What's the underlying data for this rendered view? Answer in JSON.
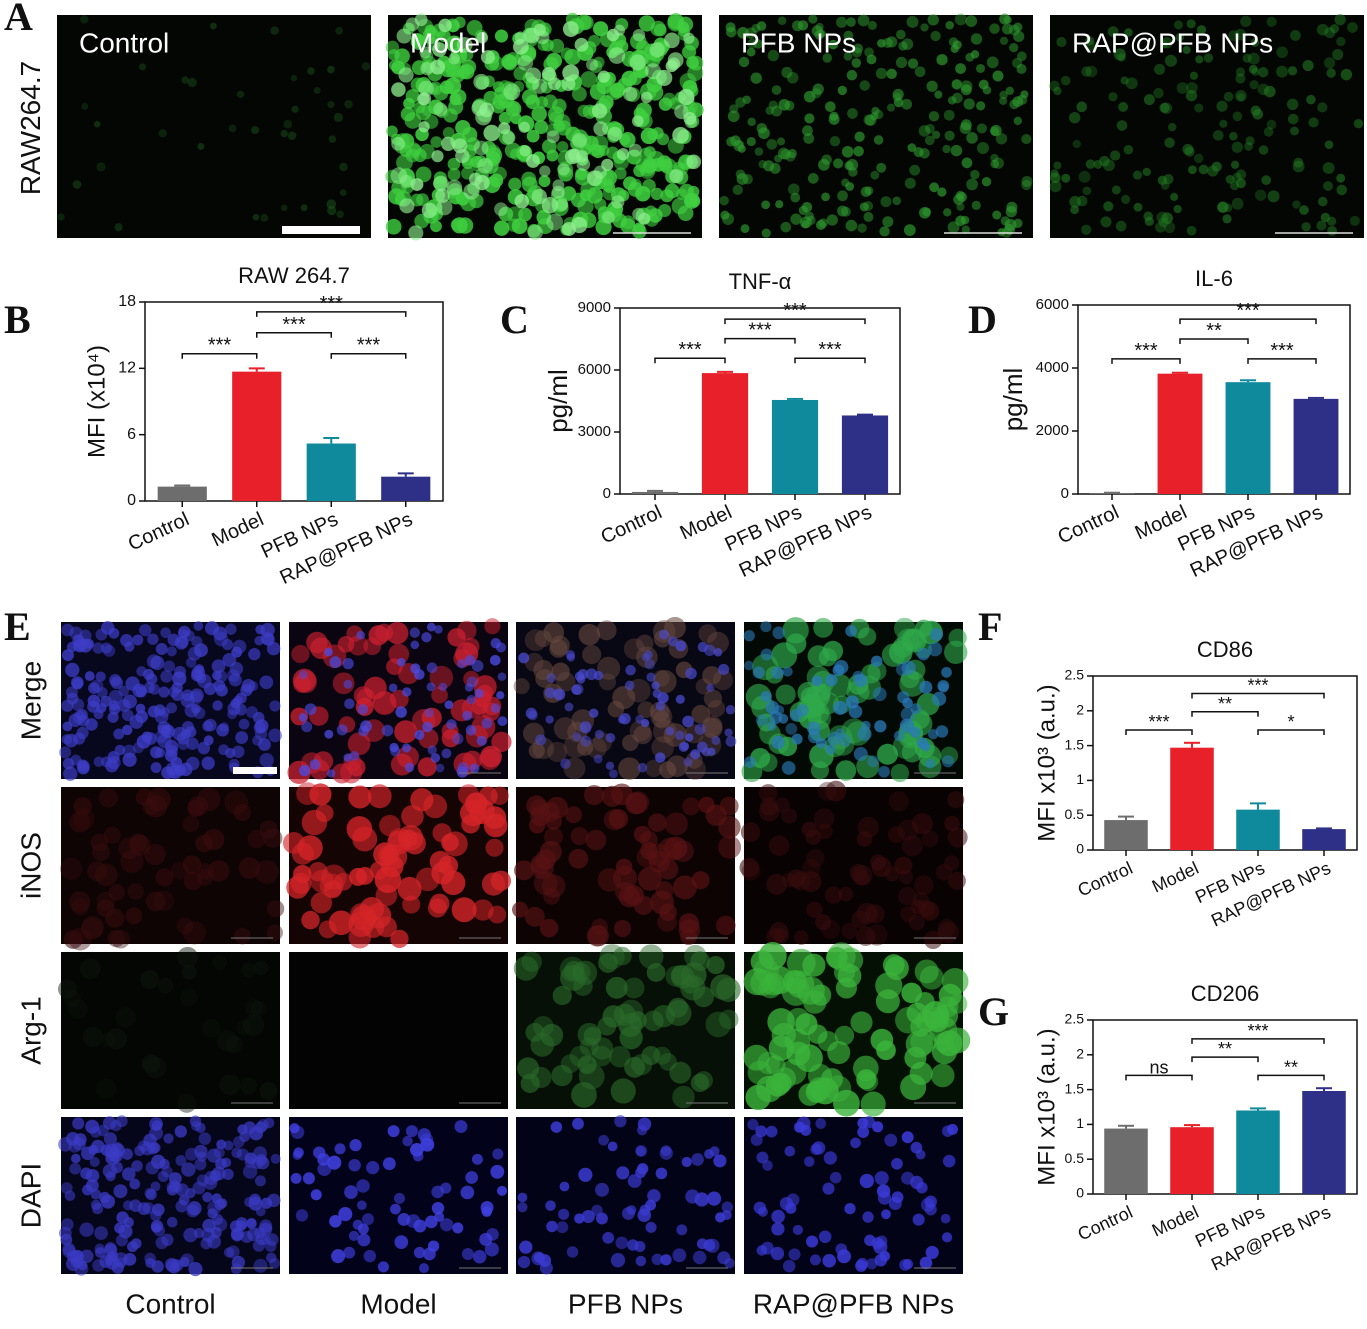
{
  "panel_letters": [
    "A",
    "B",
    "C",
    "D",
    "E",
    "F",
    "G"
  ],
  "panel_a": {
    "row_label": "RAW264.7",
    "image_labels": [
      "Control",
      "Model",
      "PFB NPs",
      "RAP@PFB NPs"
    ]
  },
  "panel_e": {
    "row_labels": [
      "Merge",
      "iNOS",
      "Arg-1",
      "DAPI"
    ],
    "column_labels": [
      "Control",
      "Model",
      "PFB NPs",
      "RAP@PFB NPs"
    ]
  },
  "chart_data": [
    {
      "type": "bar",
      "title": "RAW 264.7",
      "ylabel": "MFI (x10⁴)",
      "categories": [
        "Control",
        "Model",
        "PFB NPs",
        "RAP@PFB NPs"
      ],
      "values": [
        1.3,
        11.7,
        5.2,
        2.2
      ],
      "errors": [
        0.1,
        0.3,
        0.5,
        0.3
      ],
      "colors": [
        "#6d6d6d",
        "#e8202a",
        "#0f8a9c",
        "#2e3087"
      ],
      "ylim": [
        0,
        18
      ],
      "yticks": [
        0,
        6,
        12,
        18
      ],
      "brackets": [
        {
          "between": [
            "Control",
            "Model"
          ],
          "label": "***"
        },
        {
          "between": [
            "Model",
            "PFB NPs"
          ],
          "label": "***"
        },
        {
          "between": [
            "PFB NPs",
            "RAP@PFB NPs"
          ],
          "label": "***"
        },
        {
          "between": [
            "Model",
            "RAP@PFB NPs"
          ],
          "label": "***"
        }
      ]
    },
    {
      "type": "bar",
      "title": "TNF-α",
      "ylabel": "pg/ml",
      "categories": [
        "Control",
        "Model",
        "PFB NPs",
        "RAP@PFB NPs"
      ],
      "values": [
        100,
        5850,
        4550,
        3800
      ],
      "errors": [
        50,
        60,
        50,
        40
      ],
      "colors": [
        "#6d6d6d",
        "#e8202a",
        "#0f8a9c",
        "#2e3087"
      ],
      "ylim": [
        0,
        9000
      ],
      "yticks": [
        0,
        3000,
        6000,
        9000
      ],
      "brackets": [
        {
          "between": [
            "Control",
            "Model"
          ],
          "label": "***"
        },
        {
          "between": [
            "Model",
            "PFB NPs"
          ],
          "label": "***"
        },
        {
          "between": [
            "PFB NPs",
            "RAP@PFB NPs"
          ],
          "label": "***"
        },
        {
          "between": [
            "Model",
            "RAP@PFB NPs"
          ],
          "label": "***"
        }
      ]
    },
    {
      "type": "bar",
      "title": "IL-6",
      "ylabel": "pg/ml",
      "categories": [
        "Control",
        "Model",
        "PFB NPs",
        "RAP@PFB NPs"
      ],
      "values": [
        30,
        3820,
        3550,
        3020
      ],
      "errors": [
        10,
        30,
        60,
        30
      ],
      "colors": [
        "#6d6d6d",
        "#e8202a",
        "#0f8a9c",
        "#2e3087"
      ],
      "ylim": [
        0,
        6000
      ],
      "yticks": [
        0,
        2000,
        4000,
        6000
      ],
      "brackets": [
        {
          "between": [
            "Control",
            "Model"
          ],
          "label": "***"
        },
        {
          "between": [
            "Model",
            "PFB NPs"
          ],
          "label": "**"
        },
        {
          "between": [
            "PFB NPs",
            "RAP@PFB NPs"
          ],
          "label": "***"
        },
        {
          "between": [
            "Model",
            "RAP@PFB NPs"
          ],
          "label": "***"
        }
      ]
    },
    {
      "type": "bar",
      "title": "CD86",
      "ylabel": "MFI x10³ (a.u.)",
      "categories": [
        "Control",
        "Model",
        "PFB NPs",
        "RAP@PFB NPs"
      ],
      "values": [
        0.43,
        1.47,
        0.58,
        0.3
      ],
      "errors": [
        0.05,
        0.07,
        0.09,
        0.01
      ],
      "colors": [
        "#6d6d6d",
        "#e8202a",
        "#0f8a9c",
        "#2e3087"
      ],
      "ylim": [
        0,
        2.5
      ],
      "yticks": [
        0,
        0.5,
        1,
        1.5,
        2,
        2.5
      ],
      "brackets": [
        {
          "between": [
            "Control",
            "Model"
          ],
          "label": "***"
        },
        {
          "between": [
            "Model",
            "PFB NPs"
          ],
          "label": "**"
        },
        {
          "between": [
            "PFB NPs",
            "RAP@PFB NPs"
          ],
          "label": "*"
        },
        {
          "between": [
            "Model",
            "RAP@PFB NPs"
          ],
          "label": "***"
        }
      ]
    },
    {
      "type": "bar",
      "title": "CD206",
      "ylabel": "MFI x10³ (a.u.)",
      "categories": [
        "Control",
        "Model",
        "PFB NPs",
        "RAP@PFB NPs"
      ],
      "values": [
        0.94,
        0.96,
        1.2,
        1.48
      ],
      "errors": [
        0.04,
        0.03,
        0.03,
        0.04
      ],
      "colors": [
        "#6d6d6d",
        "#e8202a",
        "#0f8a9c",
        "#2e3087"
      ],
      "ylim": [
        0,
        2.5
      ],
      "yticks": [
        0,
        0.5,
        1,
        1.5,
        2,
        2.5
      ],
      "brackets": [
        {
          "between": [
            "Control",
            "Model"
          ],
          "label": "ns"
        },
        {
          "between": [
            "Model",
            "PFB NPs"
          ],
          "label": "**"
        },
        {
          "between": [
            "PFB NPs",
            "RAP@PFB NPs"
          ],
          "label": "**"
        },
        {
          "between": [
            "Model",
            "RAP@PFB NPs"
          ],
          "label": "***"
        }
      ]
    }
  ]
}
